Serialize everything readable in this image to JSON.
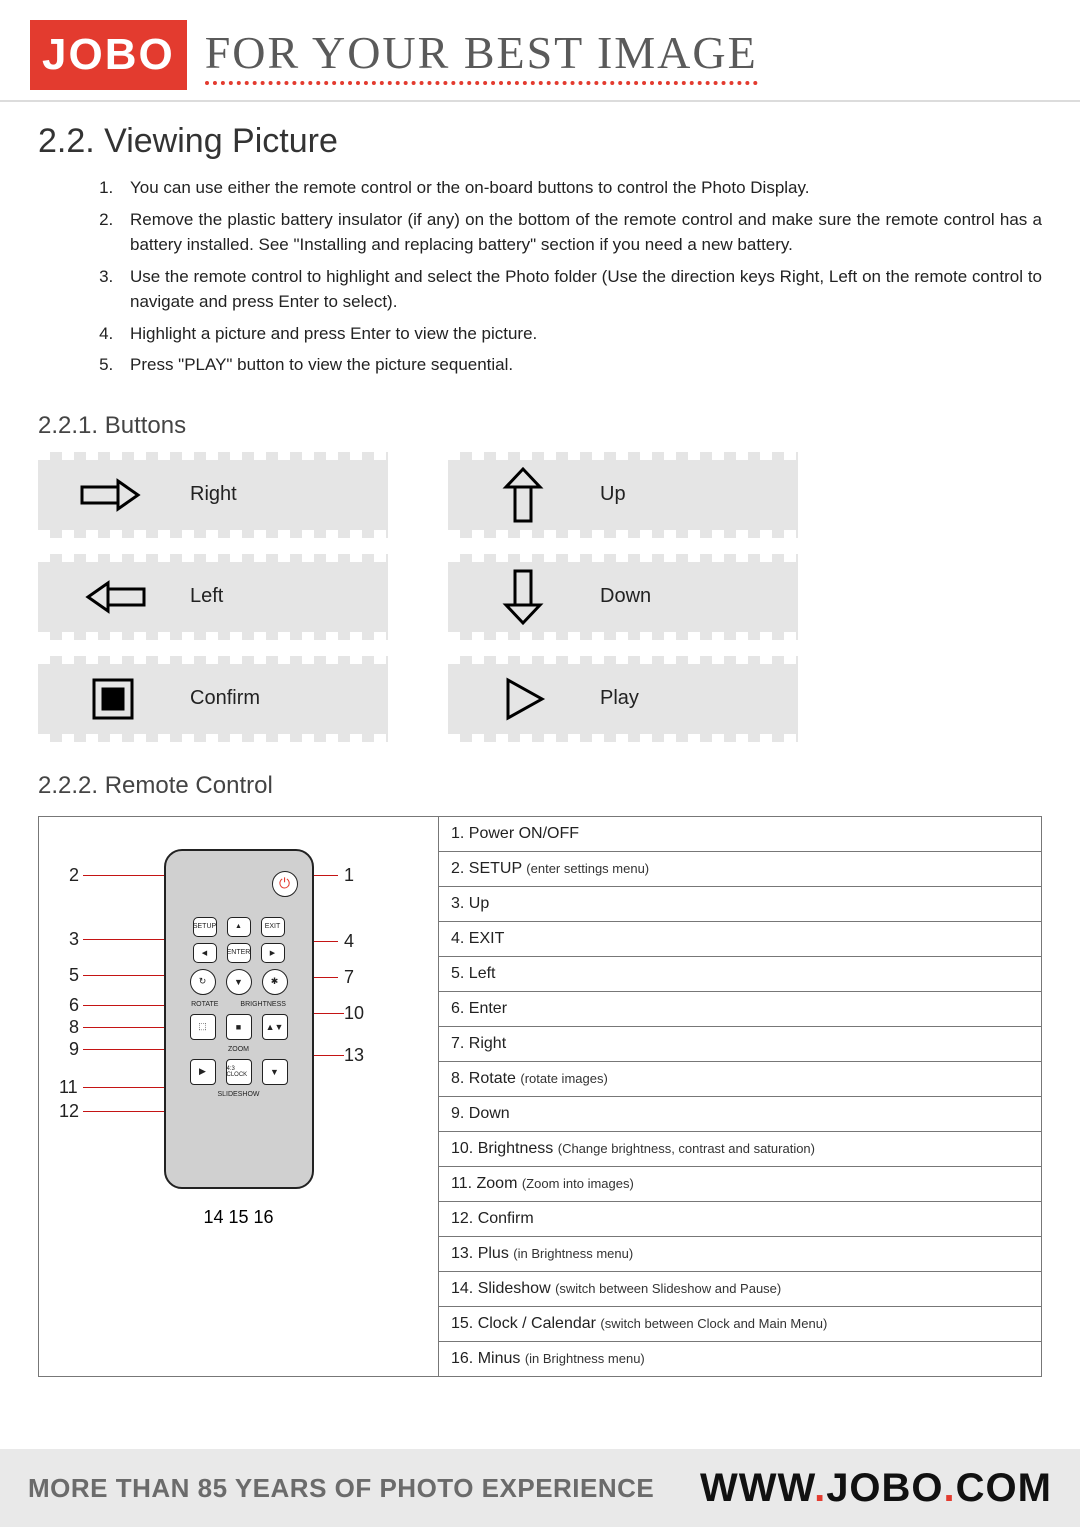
{
  "header": {
    "logo_text": "JOBO",
    "tagline": "FOR YOUR BEST IMAGE",
    "logo_bg": "#e33b2f",
    "tagline_underline": "#e33b2f"
  },
  "section": {
    "title": "2.2. Viewing Picture",
    "instructions": [
      "You can use either the remote control or the on-board buttons to control the Photo Display.",
      "Remove the plastic battery insulator (if any) on the bottom of the remote control and make sure the remote control has a battery installed. See \"Installing and replacing battery\" section if you need a new battery.",
      "Use the remote control to highlight and select the Photo folder (Use the direction keys Right, Left on the remote control to navigate and press Enter to select).",
      "Highlight a picture and press Enter to view the picture.",
      "Press \"PLAY\" button to view the picture sequential."
    ]
  },
  "buttons_section": {
    "heading": "2.2.1. Buttons",
    "tiles": [
      {
        "icon": "arrow-right",
        "label": "Right"
      },
      {
        "icon": "arrow-up",
        "label": "Up"
      },
      {
        "icon": "arrow-left",
        "label": "Left"
      },
      {
        "icon": "arrow-down",
        "label": "Down"
      },
      {
        "icon": "confirm",
        "label": "Confirm"
      },
      {
        "icon": "play",
        "label": "Play"
      }
    ]
  },
  "remote_section": {
    "heading": "2.2.2. Remote Control",
    "left_callouts": [
      "2",
      "3",
      "5",
      "6",
      "8",
      "9",
      "11",
      "12"
    ],
    "right_callouts": [
      "1",
      "4",
      "7",
      "10",
      "13"
    ],
    "bottom_callouts": "14  15  16",
    "legend": [
      {
        "n": "1",
        "label": "Power ON/OFF",
        "paren": ""
      },
      {
        "n": "2",
        "label": "SETUP",
        "paren": "(enter settings menu)"
      },
      {
        "n": "3",
        "label": "Up",
        "paren": ""
      },
      {
        "n": "4",
        "label": "EXIT",
        "paren": ""
      },
      {
        "n": "5",
        "label": "Left",
        "paren": ""
      },
      {
        "n": "6",
        "label": "Enter",
        "paren": ""
      },
      {
        "n": "7",
        "label": "Right",
        "paren": ""
      },
      {
        "n": "8",
        "label": "Rotate",
        "paren": "(rotate images)"
      },
      {
        "n": "9",
        "label": "Down",
        "paren": ""
      },
      {
        "n": "10",
        "label": "Brightness",
        "paren": "(Change brightness, contrast and saturation)"
      },
      {
        "n": "11",
        "label": "Zoom",
        "paren": "(Zoom into images)"
      },
      {
        "n": "12",
        "label": "Confirm",
        "paren": ""
      },
      {
        "n": "13",
        "label": "Plus",
        "paren": "(in Brightness menu)"
      },
      {
        "n": "14",
        "label": "Slideshow",
        "paren": "(switch between Slideshow and Pause)"
      },
      {
        "n": "15",
        "label": "Clock / Calendar",
        "paren": "(switch between Clock and Main Menu)"
      },
      {
        "n": "16",
        "label": "Minus",
        "paren": "(in Brightness menu)"
      }
    ],
    "remote_labels": {
      "setup": "SETUP",
      "exit": "EXIT",
      "enter": "ENTER",
      "rotate": "ROTATE",
      "brightness": "BRIGHTNESS",
      "zoom": "ZOOM",
      "clock": "4:3\nCLOCK",
      "slideshow": "SLIDESHOW"
    }
  },
  "footer": {
    "left": "MORE THAN 85 YEARS OF PHOTO EXPERIENCE",
    "right_parts": [
      "WWW",
      ".",
      "JOBO",
      ".",
      "COM"
    ]
  },
  "colors": {
    "brand_red": "#e33b2f",
    "callout_red": "#c41414",
    "tile_gray": "#e5e5e5",
    "border_gray": "#777",
    "text": "#222",
    "footer_bg": "#e9e9e9",
    "footer_text": "#6b6b6b"
  }
}
